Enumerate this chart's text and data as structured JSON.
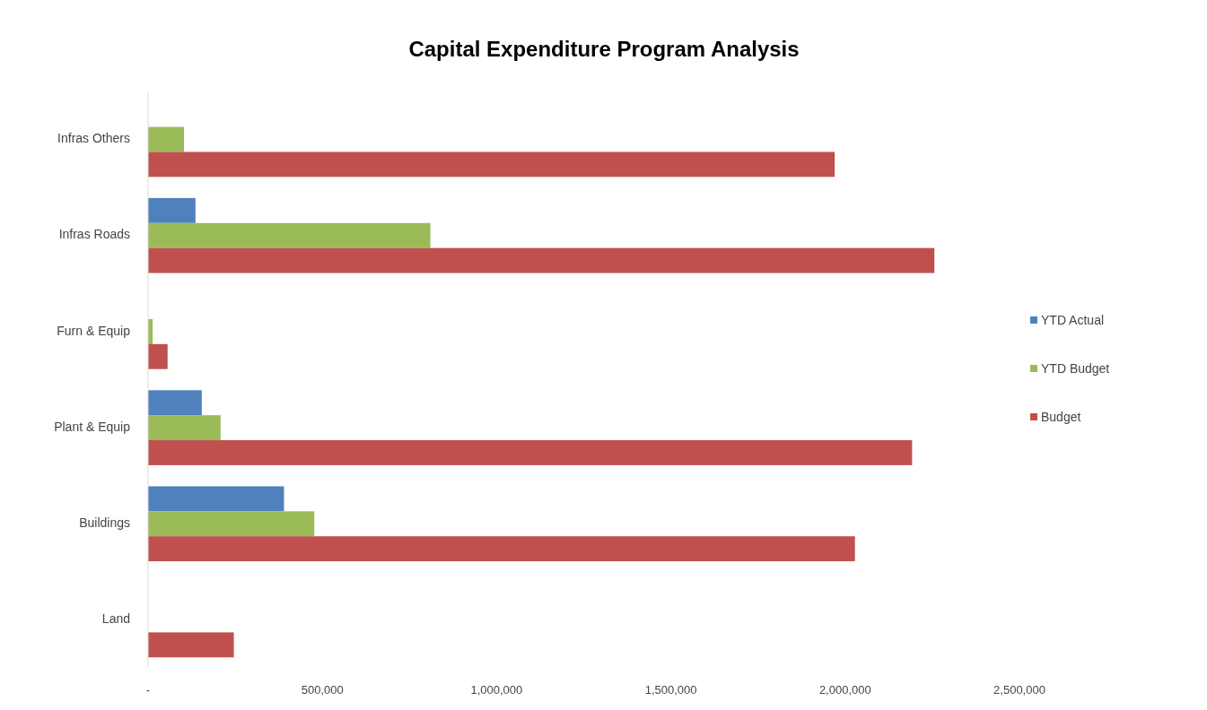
{
  "chart_data": {
    "type": "bar",
    "orientation": "horizontal",
    "title": "Capital Expenditure Program Analysis",
    "categories": [
      "Infras Others",
      "Infras Roads",
      "Furn & Equip",
      "Plant & Equip",
      "Buildings",
      "Land"
    ],
    "series": [
      {
        "name": "YTD Actual",
        "color": "#4f81bd",
        "values": [
          null,
          136000,
          null,
          154000,
          390000,
          null
        ]
      },
      {
        "name": "YTD Budget",
        "color": "#9bbb59",
        "values": [
          103000,
          810000,
          13000,
          208000,
          477000,
          null
        ]
      },
      {
        "name": "Budget",
        "color": "#c0504d",
        "values": [
          1970000,
          2256000,
          56000,
          2192000,
          2028000,
          246000
        ]
      }
    ],
    "xlim": [
      0,
      2500000
    ],
    "xticks": [
      {
        "value": 0,
        "label": "-"
      },
      {
        "value": 500000,
        "label": "500,000"
      },
      {
        "value": 1000000,
        "label": "1,000,000"
      },
      {
        "value": 1500000,
        "label": "1,500,000"
      },
      {
        "value": 2000000,
        "label": "2,000,000"
      },
      {
        "value": 2500000,
        "label": "2,500,000"
      }
    ],
    "legend": "right",
    "grid": false
  }
}
